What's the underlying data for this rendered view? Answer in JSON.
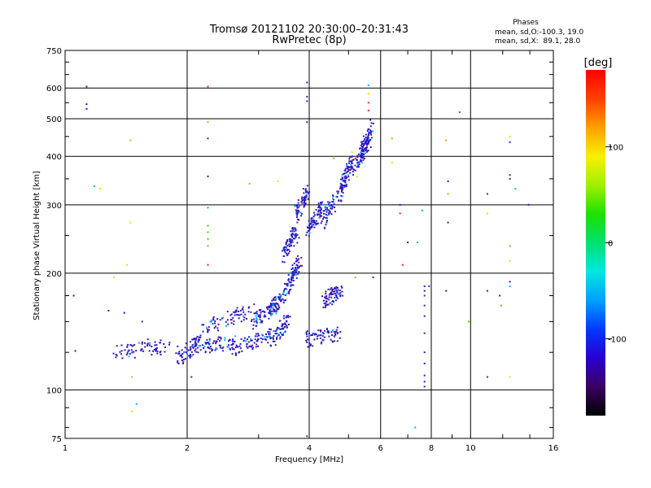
{
  "chart_data": {
    "type": "scatter",
    "title": "Tromsø 20121102 20:30:00–20:31:43",
    "subtitle": "RwPretec (8p)",
    "xlabel": "Frequency [MHz]",
    "ylabel": "Stationary phase Virtual Height [km]",
    "x_scale": "log",
    "y_scale": "log",
    "xlim": [
      1,
      16
    ],
    "ylim": [
      75,
      750
    ],
    "x_ticks": [
      1,
      2,
      4,
      6,
      8,
      10,
      16
    ],
    "y_ticks": [
      75,
      100,
      200,
      300,
      400,
      500,
      600,
      750
    ],
    "grid": true,
    "stats": {
      "heading": "Phases",
      "line_o": "mean, sd,O:-100.3, 19.0",
      "line_x": "mean, sd,X:  89.1, 28.0"
    },
    "colorbar": {
      "label": "[deg]",
      "ticks": [
        100,
        0,
        -100
      ],
      "range": [
        -180,
        180
      ],
      "colors": [
        "#000000",
        "#3a0060",
        "#2a00d0",
        "#0038ff",
        "#00a0ff",
        "#00e8e0",
        "#00e070",
        "#1ee000",
        "#a0f000",
        "#f8f000",
        "#ffa000",
        "#ff4000",
        "#ff0000"
      ]
    },
    "trace_color": "#2a18c8",
    "point_color_names": {
      "b": "#2a18c8",
      "v": "#5a14a8",
      "c": "#00b8f0",
      "g": "#50d000",
      "y": "#e8e000",
      "o": "#f0a000",
      "r": "#ff2020",
      "t": "#00c0c0"
    },
    "series": [
      {
        "name": "dense_traces",
        "segments": [
          [
            1.3,
            125,
            1.9,
            130
          ],
          [
            1.9,
            120,
            2.15,
            135
          ],
          [
            2.15,
            130,
            2.6,
            132
          ],
          [
            2.6,
            128,
            3.2,
            138
          ],
          [
            3.2,
            133,
            3.55,
            152
          ],
          [
            3.2,
            158,
            3.55,
            185
          ],
          [
            3.55,
            185,
            3.8,
            215
          ],
          [
            3.45,
            222,
            3.75,
            258
          ],
          [
            3.7,
            280,
            3.95,
            325
          ],
          [
            3.95,
            255,
            4.3,
            295
          ],
          [
            4.3,
            270,
            4.8,
            325
          ],
          [
            4.8,
            330,
            5.1,
            390
          ],
          [
            5.1,
            370,
            5.6,
            440
          ],
          [
            5.4,
            400,
            5.7,
            480
          ],
          [
            2.2,
            145,
            2.9,
            160
          ],
          [
            2.9,
            150,
            3.3,
            165
          ],
          [
            3.9,
            135,
            4.8,
            140
          ],
          [
            4.3,
            170,
            4.8,
            180
          ]
        ],
        "density": 70
      },
      {
        "name": "scattered_points",
        "points": [
          [
            1.05,
            175,
            "b"
          ],
          [
            1.06,
            126,
            "b"
          ],
          [
            1.13,
            605,
            "v"
          ],
          [
            1.13,
            545,
            "b"
          ],
          [
            1.13,
            530,
            "b"
          ],
          [
            1.18,
            335,
            "c"
          ],
          [
            1.22,
            330,
            "y"
          ],
          [
            1.28,
            160,
            "v"
          ],
          [
            1.32,
            195,
            "y"
          ],
          [
            1.4,
            158,
            "b"
          ],
          [
            1.42,
            210,
            "y"
          ],
          [
            1.45,
            440,
            "o"
          ],
          [
            1.45,
            270,
            "y"
          ],
          [
            1.46,
            108,
            "o"
          ],
          [
            1.46,
            88,
            "y"
          ],
          [
            1.5,
            92,
            "t"
          ],
          [
            1.55,
            150,
            "v"
          ],
          [
            1.6,
            135,
            "b"
          ],
          [
            2.05,
            108,
            "b"
          ],
          [
            2.25,
            605,
            "r"
          ],
          [
            2.25,
            490,
            "o"
          ],
          [
            2.25,
            445,
            "v"
          ],
          [
            2.25,
            355,
            "b"
          ],
          [
            2.25,
            295,
            "c"
          ],
          [
            2.25,
            265,
            "g"
          ],
          [
            2.25,
            255,
            "g"
          ],
          [
            2.25,
            245,
            "g"
          ],
          [
            2.25,
            235,
            "g"
          ],
          [
            2.25,
            210,
            "r"
          ],
          [
            2.85,
            340,
            "o"
          ],
          [
            3.35,
            345,
            "y"
          ],
          [
            3.95,
            620,
            "b"
          ],
          [
            3.95,
            570,
            "v"
          ],
          [
            3.95,
            555,
            "v"
          ],
          [
            3.95,
            490,
            "v"
          ],
          [
            3.95,
            76,
            "v"
          ],
          [
            4.6,
            395,
            "o"
          ],
          [
            5.1,
            410,
            "y"
          ],
          [
            5.2,
            395,
            "r"
          ],
          [
            5.25,
            355,
            "y"
          ],
          [
            5.2,
            195,
            "o"
          ],
          [
            5.6,
            610,
            "c"
          ],
          [
            5.6,
            580,
            "y"
          ],
          [
            5.6,
            550,
            "r"
          ],
          [
            5.6,
            525,
            "r"
          ],
          [
            5.75,
            195,
            "b"
          ],
          [
            6.4,
            445,
            "o"
          ],
          [
            6.4,
            385,
            "y"
          ],
          [
            6.7,
            300,
            "b"
          ],
          [
            6.7,
            285,
            "r"
          ],
          [
            6.8,
            210,
            "r"
          ],
          [
            7.0,
            240,
            "b"
          ],
          [
            7.4,
            240,
            "c"
          ],
          [
            7.3,
            80,
            "c"
          ],
          [
            7.6,
            290,
            "c"
          ],
          [
            7.7,
            185,
            "v"
          ],
          [
            7.7,
            180,
            "b"
          ],
          [
            7.7,
            175,
            "v"
          ],
          [
            7.7,
            165,
            "v"
          ],
          [
            7.7,
            155,
            "b"
          ],
          [
            7.7,
            140,
            "v"
          ],
          [
            7.7,
            125,
            "b"
          ],
          [
            7.7,
            117,
            "b"
          ],
          [
            7.7,
            109,
            "b"
          ],
          [
            7.7,
            105,
            "b"
          ],
          [
            7.7,
            102,
            "b"
          ],
          [
            7.9,
            185,
            "v"
          ],
          [
            8.7,
            440,
            "o"
          ],
          [
            8.8,
            345,
            "b"
          ],
          [
            8.8,
            320,
            "o"
          ],
          [
            8.8,
            270,
            "v"
          ],
          [
            8.7,
            180,
            "b"
          ],
          [
            9.4,
            520,
            "r"
          ],
          [
            9.9,
            150,
            "g"
          ],
          [
            11.0,
            320,
            "v"
          ],
          [
            11.0,
            285,
            "y"
          ],
          [
            11.0,
            180,
            "b"
          ],
          [
            11.0,
            108,
            "v"
          ],
          [
            11.8,
            175,
            "b"
          ],
          [
            11.9,
            165,
            "g"
          ],
          [
            12.5,
            450,
            "y"
          ],
          [
            12.5,
            435,
            "b"
          ],
          [
            12.5,
            358,
            "v"
          ],
          [
            12.5,
            350,
            "b"
          ],
          [
            12.5,
            235,
            "g"
          ],
          [
            12.5,
            215,
            "y"
          ],
          [
            12.5,
            190,
            "b"
          ],
          [
            12.5,
            185,
            "c"
          ],
          [
            12.5,
            108,
            "y"
          ],
          [
            12.9,
            330,
            "c"
          ],
          [
            13.9,
            300,
            "b"
          ]
        ]
      }
    ]
  }
}
